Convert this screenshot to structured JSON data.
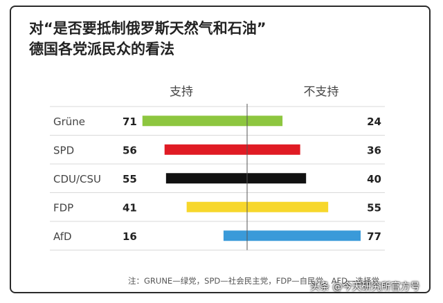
{
  "title_line1": "对“是否要抵制俄罗斯天然气和石油”",
  "title_line2": "德国各党派民众的看法",
  "note": "注：GRUNE—绿党，SPD—社会民主党，FDP—自民党，AFD—选择党",
  "watermark": "头条 @今天研究所官方号",
  "chart_data": {
    "type": "bar",
    "orientation": "horizontal-diverging",
    "categories": [
      "Grüne",
      "SPD",
      "CDU/CSU",
      "FDP",
      "AfD"
    ],
    "series": [
      {
        "name": "支持",
        "values": [
          71,
          56,
          55,
          41,
          16
        ]
      },
      {
        "name": "不支持",
        "values": [
          24,
          36,
          40,
          55,
          77
        ]
      }
    ],
    "colors": [
      "#8dc63f",
      "#e01b24",
      "#111111",
      "#f7d72b",
      "#3a9ad9"
    ],
    "grid": true,
    "legend": "top"
  }
}
